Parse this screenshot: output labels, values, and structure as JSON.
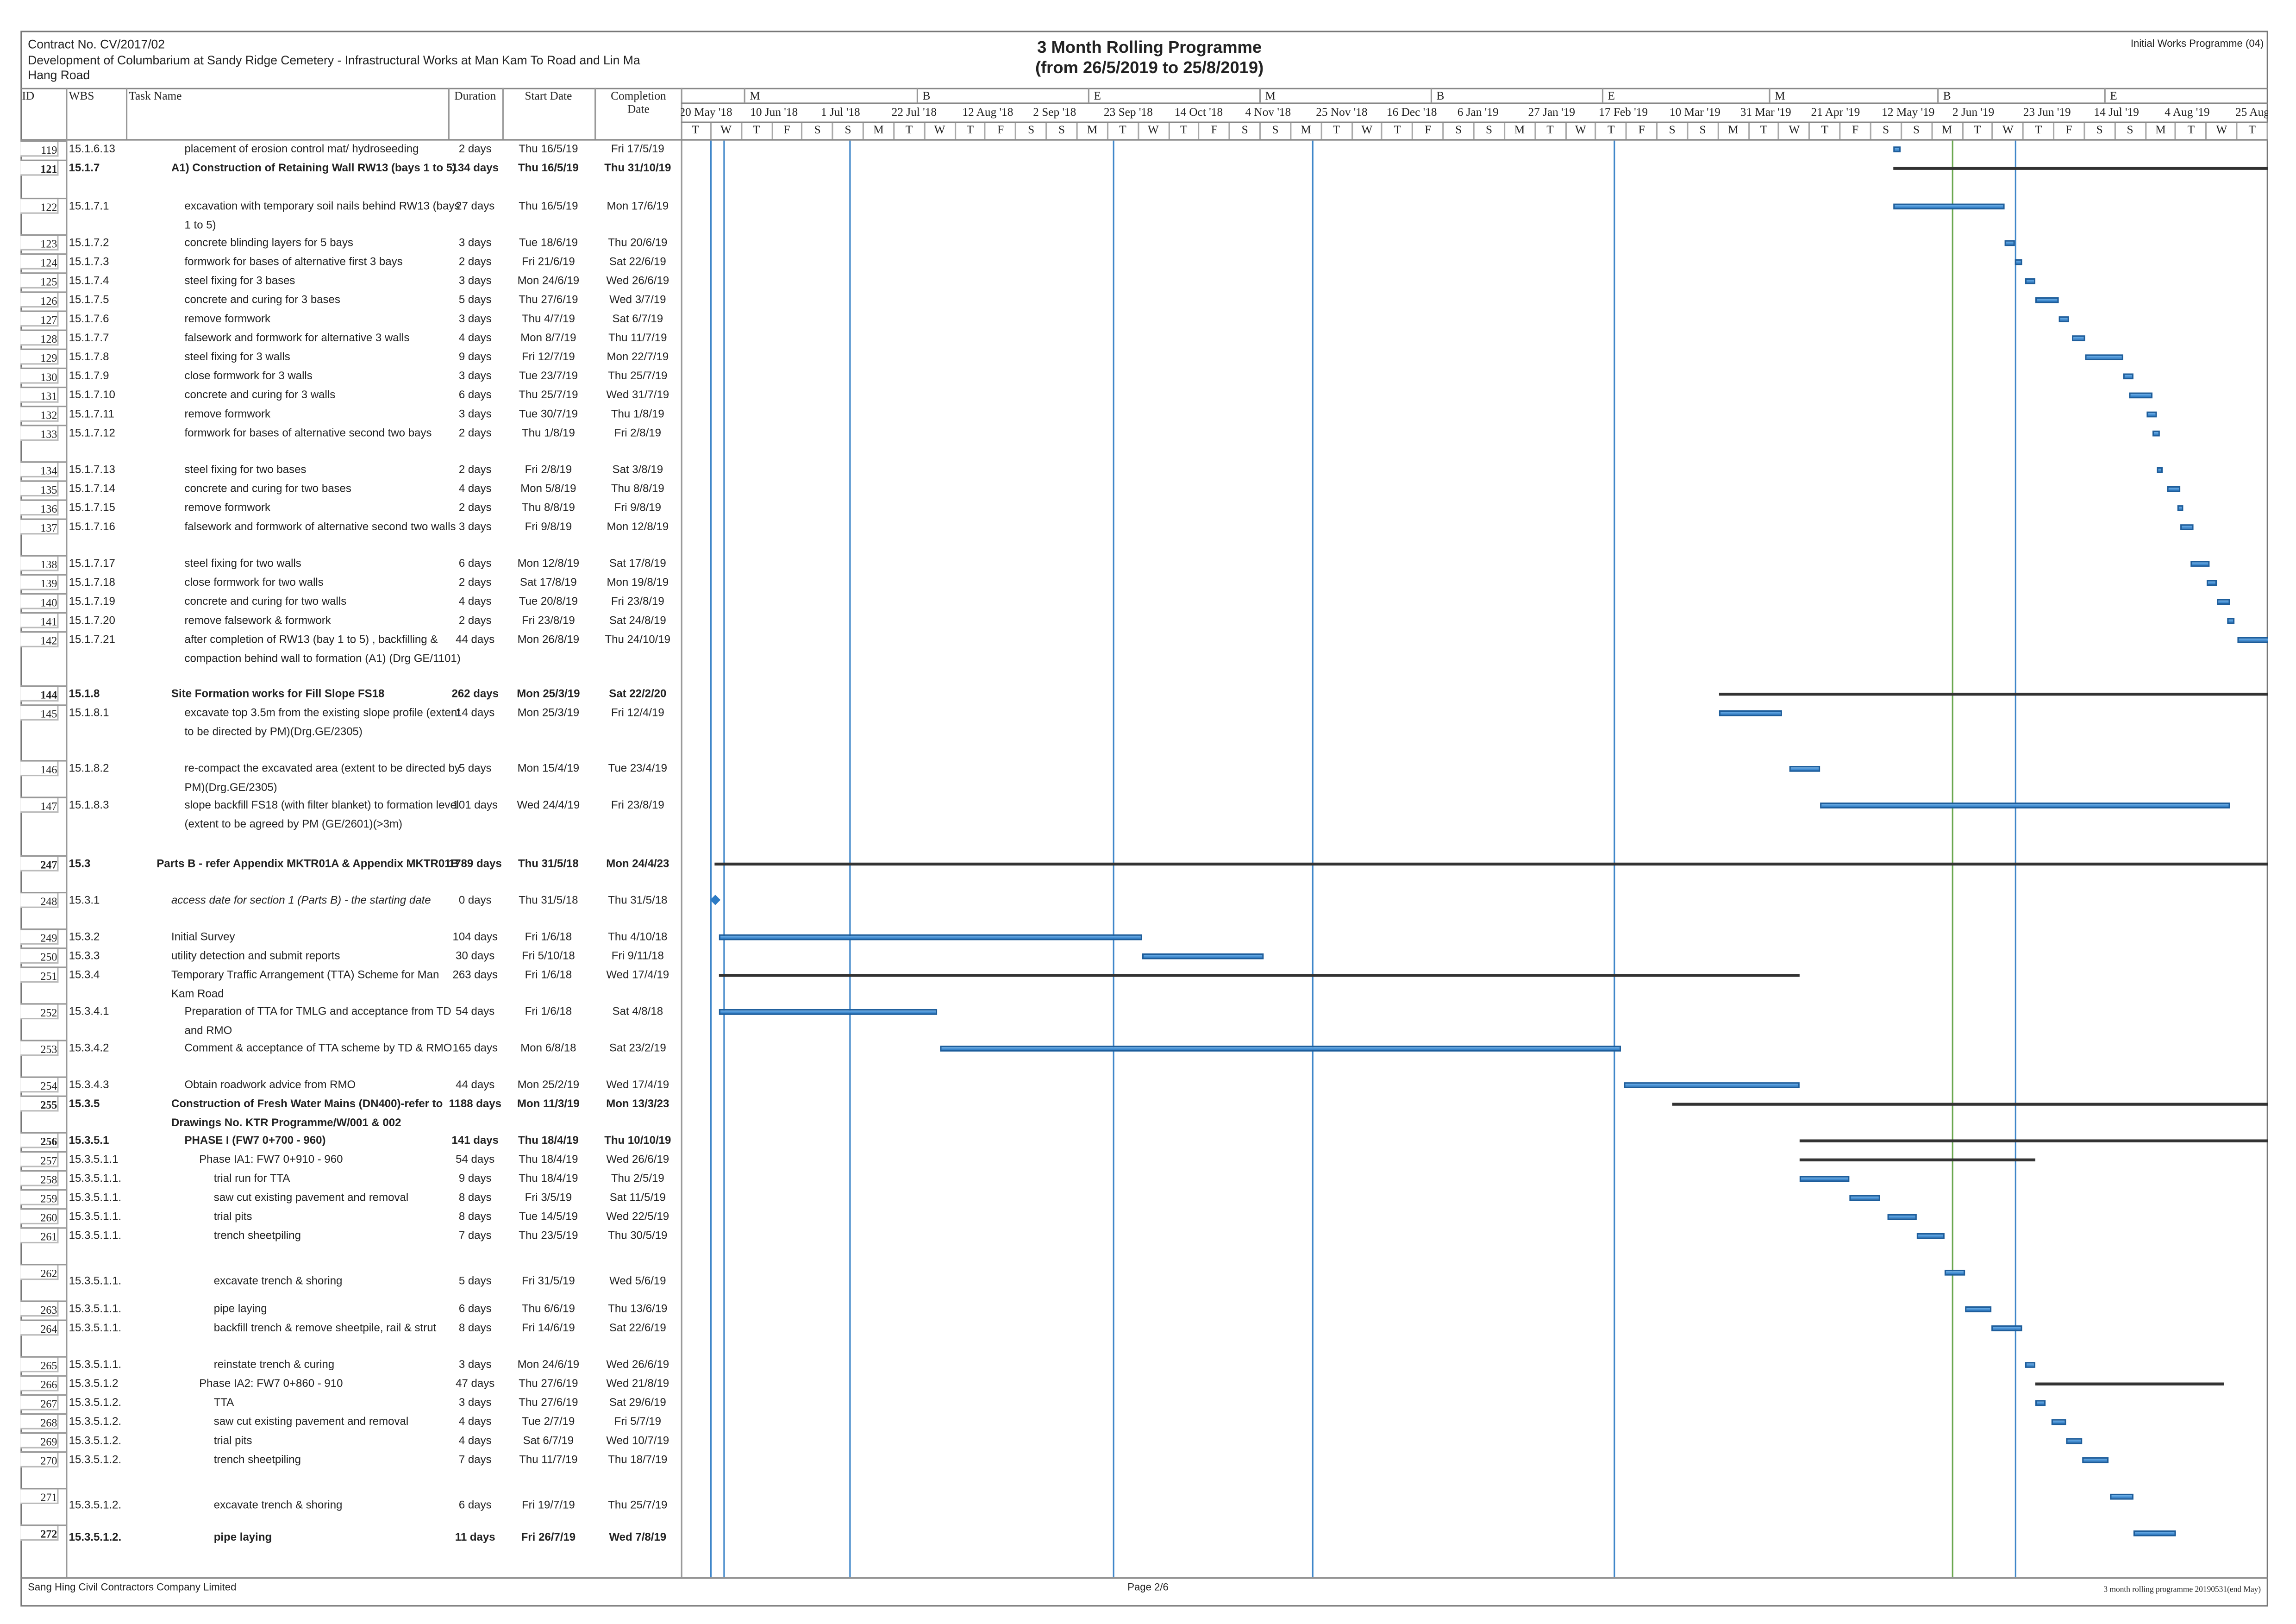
{
  "header": {
    "contract": "Contract No. CV/2017/02",
    "project": "Development of Columbarium at Sandy Ridge Cemetery - Infrastructural Works at Man Kam To Road and Lin Ma Hang Road",
    "title": "3 Month Rolling Programme",
    "subtitle": "(from 26/5/2019 to 25/8/2019)",
    "programme": "Initial Works Programme (04)"
  },
  "columns": {
    "id": "ID",
    "wbs": "WBS",
    "task_name": "Task Name",
    "duration": "Duration",
    "start": "Start Date",
    "completion": "Completion Date"
  },
  "timescale": {
    "tier1": [
      "M",
      "B",
      "E",
      "M",
      "B",
      "E",
      "M",
      "B",
      "E"
    ],
    "tier2": [
      "20 May '18",
      "10 Jun '18",
      "1 Jul '18",
      "22 Jul '18",
      "12 Aug '18",
      "2 Sep '18",
      "23 Sep '18",
      "14 Oct '18",
      "4 Nov '18",
      "25 Nov '18",
      "16 Dec '18",
      "6 Jan '19",
      "27 Jan '19",
      "17 Feb '19",
      "10 Mar '19",
      "31 Mar '19",
      "21 Apr '19",
      "12 May '19",
      "2 Jun '19",
      "23 Jun '19",
      "14 Jul '19",
      "4 Aug '19",
      "25 Aug"
    ],
    "tier3": [
      "T",
      "W",
      "T",
      "F",
      "S",
      "S",
      "M",
      "T",
      "W",
      "T",
      "F",
      "S",
      "S",
      "M",
      "T",
      "W",
      "T",
      "F",
      "S",
      "S",
      "M",
      "T",
      "W",
      "T",
      "F",
      "S",
      "S",
      "M",
      "T",
      "W",
      "T",
      "F",
      "S",
      "S",
      "M",
      "T",
      "W",
      "T",
      "F",
      "S",
      "S",
      "M",
      "T",
      "W",
      "T",
      "F",
      "S",
      "S",
      "M",
      "T",
      "W",
      "T"
    ]
  },
  "colors": {
    "task_bar": "#2d7bc4",
    "summary_bar": "#333333",
    "progress_line": "#3f86c9",
    "status_line": "#6aa84f"
  },
  "tasks": [
    {
      "id": "119",
      "wbs": "15.1.6.13",
      "name": "placement of erosion control mat/ hydroseeding",
      "duration": "2 days",
      "start": "Thu 16/5/19",
      "finish": "Fri 17/5/19",
      "level": 2
    },
    {
      "id": "121",
      "wbs": "15.1.7",
      "name": "A1) Construction of Retaining Wall RW13 (bays 1 to 5)",
      "duration": "134 days",
      "start": "Thu 16/5/19",
      "finish": "Thu 31/10/19",
      "level": 1,
      "summary": true
    },
    {
      "id": "122",
      "wbs": "15.1.7.1",
      "name": "excavation with temporary soil nails behind RW13 (bays 1 to 5)",
      "duration": "27 days",
      "start": "Thu 16/5/19",
      "finish": "Mon 17/6/19",
      "level": 2
    },
    {
      "id": "123",
      "wbs": "15.1.7.2",
      "name": "concrete blinding layers for 5 bays",
      "duration": "3 days",
      "start": "Tue 18/6/19",
      "finish": "Thu 20/6/19",
      "level": 2
    },
    {
      "id": "124",
      "wbs": "15.1.7.3",
      "name": "formwork for bases of alternative first 3 bays",
      "duration": "2 days",
      "start": "Fri 21/6/19",
      "finish": "Sat 22/6/19",
      "level": 2
    },
    {
      "id": "125",
      "wbs": "15.1.7.4",
      "name": "steel fixing for 3 bases",
      "duration": "3 days",
      "start": "Mon 24/6/19",
      "finish": "Wed 26/6/19",
      "level": 2
    },
    {
      "id": "126",
      "wbs": "15.1.7.5",
      "name": "concrete and curing for 3 bases",
      "duration": "5 days",
      "start": "Thu 27/6/19",
      "finish": "Wed 3/7/19",
      "level": 2
    },
    {
      "id": "127",
      "wbs": "15.1.7.6",
      "name": "remove formwork",
      "duration": "3 days",
      "start": "Thu 4/7/19",
      "finish": "Sat 6/7/19",
      "level": 2
    },
    {
      "id": "128",
      "wbs": "15.1.7.7",
      "name": "falsework and formwork for alternative 3 walls",
      "duration": "4 days",
      "start": "Mon 8/7/19",
      "finish": "Thu 11/7/19",
      "level": 2
    },
    {
      "id": "129",
      "wbs": "15.1.7.8",
      "name": "steel fixing for 3 walls",
      "duration": "9 days",
      "start": "Fri 12/7/19",
      "finish": "Mon 22/7/19",
      "level": 2
    },
    {
      "id": "130",
      "wbs": "15.1.7.9",
      "name": "close formwork for 3 walls",
      "duration": "3 days",
      "start": "Tue 23/7/19",
      "finish": "Thu 25/7/19",
      "level": 2
    },
    {
      "id": "131",
      "wbs": "15.1.7.10",
      "name": "concrete and curing for 3 walls",
      "duration": "6 days",
      "start": "Thu 25/7/19",
      "finish": "Wed 31/7/19",
      "level": 2
    },
    {
      "id": "132",
      "wbs": "15.1.7.11",
      "name": "remove formwork",
      "duration": "3 days",
      "start": "Tue 30/7/19",
      "finish": "Thu 1/8/19",
      "level": 2
    },
    {
      "id": "133",
      "wbs": "15.1.7.12",
      "name": "formwork for bases of alternative second two bays",
      "duration": "2 days",
      "start": "Thu 1/8/19",
      "finish": "Fri 2/8/19",
      "level": 2
    },
    {
      "id": "134",
      "wbs": "15.1.7.13",
      "name": "steel fixing for two bases",
      "duration": "2 days",
      "start": "Fri 2/8/19",
      "finish": "Sat 3/8/19",
      "level": 2
    },
    {
      "id": "135",
      "wbs": "15.1.7.14",
      "name": "concrete and curing for two bases",
      "duration": "4 days",
      "start": "Mon 5/8/19",
      "finish": "Thu 8/8/19",
      "level": 2
    },
    {
      "id": "136",
      "wbs": "15.1.7.15",
      "name": "remove formwork",
      "duration": "2 days",
      "start": "Thu 8/8/19",
      "finish": "Fri 9/8/19",
      "level": 2
    },
    {
      "id": "137",
      "wbs": "15.1.7.16",
      "name": "falsework and formwork of alternative second two walls",
      "duration": "3 days",
      "start": "Fri 9/8/19",
      "finish": "Mon 12/8/19",
      "level": 2
    },
    {
      "id": "138",
      "wbs": "15.1.7.17",
      "name": "steel fixing for two walls",
      "duration": "6 days",
      "start": "Mon 12/8/19",
      "finish": "Sat 17/8/19",
      "level": 2
    },
    {
      "id": "139",
      "wbs": "15.1.7.18",
      "name": "close formwork for two walls",
      "duration": "2 days",
      "start": "Sat 17/8/19",
      "finish": "Mon 19/8/19",
      "level": 2
    },
    {
      "id": "140",
      "wbs": "15.1.7.19",
      "name": "concrete and curing for two walls",
      "duration": "4 days",
      "start": "Tue 20/8/19",
      "finish": "Fri 23/8/19",
      "level": 2
    },
    {
      "id": "141",
      "wbs": "15.1.7.20",
      "name": "remove falsework & formwork",
      "duration": "2 days",
      "start": "Fri 23/8/19",
      "finish": "Sat 24/8/19",
      "level": 2
    },
    {
      "id": "142",
      "wbs": "15.1.7.21",
      "name": "after completion of RW13 (bay 1 to 5) , backfilling & compaction behind wall to formation (A1) (Drg GE/1101)",
      "duration": "44 days",
      "start": "Mon 26/8/19",
      "finish": "Thu 24/10/19",
      "level": 2
    },
    {
      "id": "144",
      "wbs": "15.1.8",
      "name": "Site Formation works for Fill Slope FS18",
      "duration": "262 days",
      "start": "Mon 25/3/19",
      "finish": "Sat 22/2/20",
      "level": 1,
      "summary": true
    },
    {
      "id": "145",
      "wbs": "15.1.8.1",
      "name": "excavate top 3.5m from the existing slope profile (extent to be directed by PM)(Drg.GE/2305)",
      "duration": "14 days",
      "start": "Mon 25/3/19",
      "finish": "Fri 12/4/19",
      "level": 2
    },
    {
      "id": "146",
      "wbs": "15.1.8.2",
      "name": "re-compact the excavated area (extent to be directed by PM)(Drg.GE/2305)",
      "duration": "5 days",
      "start": "Mon 15/4/19",
      "finish": "Tue 23/4/19",
      "level": 2
    },
    {
      "id": "147",
      "wbs": "15.1.8.3",
      "name": "slope backfill FS18 (with filter blanket) to formation level (extent to be agreed by PM (GE/2601)(>3m)",
      "duration": "101 days",
      "start": "Wed 24/4/19",
      "finish": "Fri 23/8/19",
      "level": 2
    },
    {
      "id": "247",
      "wbs": "15.3",
      "name": "Parts B - refer Appendix MKTR01A & Appendix MKTR01B",
      "duration": "1789 days",
      "start": "Thu 31/5/18",
      "finish": "Mon 24/4/23",
      "level": 0,
      "summary": true
    },
    {
      "id": "248",
      "wbs": "15.3.1",
      "name": "access date for section 1 (Parts B) - the starting date",
      "duration": "0 days",
      "start": "Thu 31/5/18",
      "finish": "Thu 31/5/18",
      "level": 1,
      "milestone": true
    },
    {
      "id": "249",
      "wbs": "15.3.2",
      "name": "Initial Survey",
      "duration": "104 days",
      "start": "Fri 1/6/18",
      "finish": "Thu 4/10/18",
      "level": 1
    },
    {
      "id": "250",
      "wbs": "15.3.3",
      "name": "utility detection and submit reports",
      "duration": "30 days",
      "start": "Fri 5/10/18",
      "finish": "Fri 9/11/18",
      "level": 1
    },
    {
      "id": "251",
      "wbs": "15.3.4",
      "name": "Temporary Traffic Arrangement (TTA) Scheme for Man Kam Road",
      "duration": "263 days",
      "start": "Fri 1/6/18",
      "finish": "Wed 17/4/19",
      "level": 1,
      "summary_plain": true
    },
    {
      "id": "252",
      "wbs": "15.3.4.1",
      "name": "Preparation of TTA for TMLG and acceptance from TD and RMO",
      "duration": "54 days",
      "start": "Fri 1/6/18",
      "finish": "Sat 4/8/18",
      "level": 2
    },
    {
      "id": "253",
      "wbs": "15.3.4.2",
      "name": "Comment & acceptance of TTA scheme by TD & RMO",
      "duration": "165 days",
      "start": "Mon 6/8/18",
      "finish": "Sat 23/2/19",
      "level": 2
    },
    {
      "id": "254",
      "wbs": "15.3.4.3",
      "name": "Obtain roadwork advice from RMO",
      "duration": "44 days",
      "start": "Mon 25/2/19",
      "finish": "Wed 17/4/19",
      "level": 2
    },
    {
      "id": "255",
      "wbs": "15.3.5",
      "name": "Construction of Fresh Water Mains (DN400)-refer to Drawings No. KTR Programme/W/001 & 002",
      "duration": "1188 days",
      "start": "Mon 11/3/19",
      "finish": "Mon 13/3/23",
      "level": 1,
      "summary": true
    },
    {
      "id": "256",
      "wbs": "15.3.5.1",
      "name": "PHASE I (FW7 0+700 - 960)",
      "duration": "141 days",
      "start": "Thu 18/4/19",
      "finish": "Thu 10/10/19",
      "level": 2,
      "summary": true
    },
    {
      "id": "257",
      "wbs": "15.3.5.1.1",
      "name": "Phase IA1: FW7 0+910 - 960",
      "duration": "54 days",
      "start": "Thu 18/4/19",
      "finish": "Wed 26/6/19",
      "level": 3,
      "summary_plain": true
    },
    {
      "id": "258",
      "wbs": "15.3.5.1.1.",
      "name": "trial run for TTA",
      "duration": "9 days",
      "start": "Thu 18/4/19",
      "finish": "Thu 2/5/19",
      "level": 4
    },
    {
      "id": "259",
      "wbs": "15.3.5.1.1.",
      "name": "saw cut existing pavement and removal",
      "duration": "8 days",
      "start": "Fri 3/5/19",
      "finish": "Sat 11/5/19",
      "level": 4
    },
    {
      "id": "260",
      "wbs": "15.3.5.1.1.",
      "name": "trial pits",
      "duration": "8 days",
      "start": "Tue 14/5/19",
      "finish": "Wed 22/5/19",
      "level": 4
    },
    {
      "id": "261",
      "wbs": "15.3.5.1.1.",
      "name": "trench sheetpiling",
      "duration": "7 days",
      "start": "Thu 23/5/19",
      "finish": "Thu 30/5/19",
      "level": 4
    },
    {
      "id": "262",
      "wbs": "15.3.5.1.1.",
      "name": "excavate trench & shoring",
      "duration": "5 days",
      "start": "Fri 31/5/19",
      "finish": "Wed 5/6/19",
      "level": 4,
      "vcenter": true
    },
    {
      "id": "263",
      "wbs": "15.3.5.1.1.",
      "name": "pipe laying",
      "duration": "6 days",
      "start": "Thu 6/6/19",
      "finish": "Thu 13/6/19",
      "level": 4
    },
    {
      "id": "264",
      "wbs": "15.3.5.1.1.",
      "name": "backfill trench & remove sheetpile, rail & strut",
      "duration": "8 days",
      "start": "Fri 14/6/19",
      "finish": "Sat 22/6/19",
      "level": 4
    },
    {
      "id": "265",
      "wbs": "15.3.5.1.1.",
      "name": "reinstate trench & curing",
      "duration": "3 days",
      "start": "Mon 24/6/19",
      "finish": "Wed 26/6/19",
      "level": 4
    },
    {
      "id": "266",
      "wbs": "15.3.5.1.2",
      "name": "Phase IA2: FW7 0+860 - 910",
      "duration": "47 days",
      "start": "Thu 27/6/19",
      "finish": "Wed 21/8/19",
      "level": 3,
      "summary_plain": true
    },
    {
      "id": "267",
      "wbs": "15.3.5.1.2.",
      "name": "TTA",
      "duration": "3 days",
      "start": "Thu 27/6/19",
      "finish": "Sat 29/6/19",
      "level": 4
    },
    {
      "id": "268",
      "wbs": "15.3.5.1.2.",
      "name": "saw cut existing pavement and removal",
      "duration": "4 days",
      "start": "Tue 2/7/19",
      "finish": "Fri 5/7/19",
      "level": 4
    },
    {
      "id": "269",
      "wbs": "15.3.5.1.2.",
      "name": "trial pits",
      "duration": "4 days",
      "start": "Sat 6/7/19",
      "finish": "Wed 10/7/19",
      "level": 4
    },
    {
      "id": "270",
      "wbs": "15.3.5.1.2.",
      "name": "trench sheetpiling",
      "duration": "7 days",
      "start": "Thu 11/7/19",
      "finish": "Thu 18/7/19",
      "level": 4
    },
    {
      "id": "271",
      "wbs": "15.3.5.1.2.",
      "name": "excavate trench & shoring",
      "duration": "6 days",
      "start": "Fri 19/7/19",
      "finish": "Thu 25/7/19",
      "level": 4,
      "vcenter": true
    },
    {
      "id": "272",
      "wbs": "15.3.5.1.2.",
      "name": "pipe laying",
      "duration": "11 days",
      "start": "Fri 26/7/19",
      "finish": "Wed 7/8/19",
      "level": 4,
      "bold": true,
      "vcenter": true
    }
  ],
  "footer": {
    "company": "Sang Hing Civil Contractors Company Limited",
    "page": "Page 2/6",
    "file": "3 month rolling programme 20190531(end May)"
  }
}
